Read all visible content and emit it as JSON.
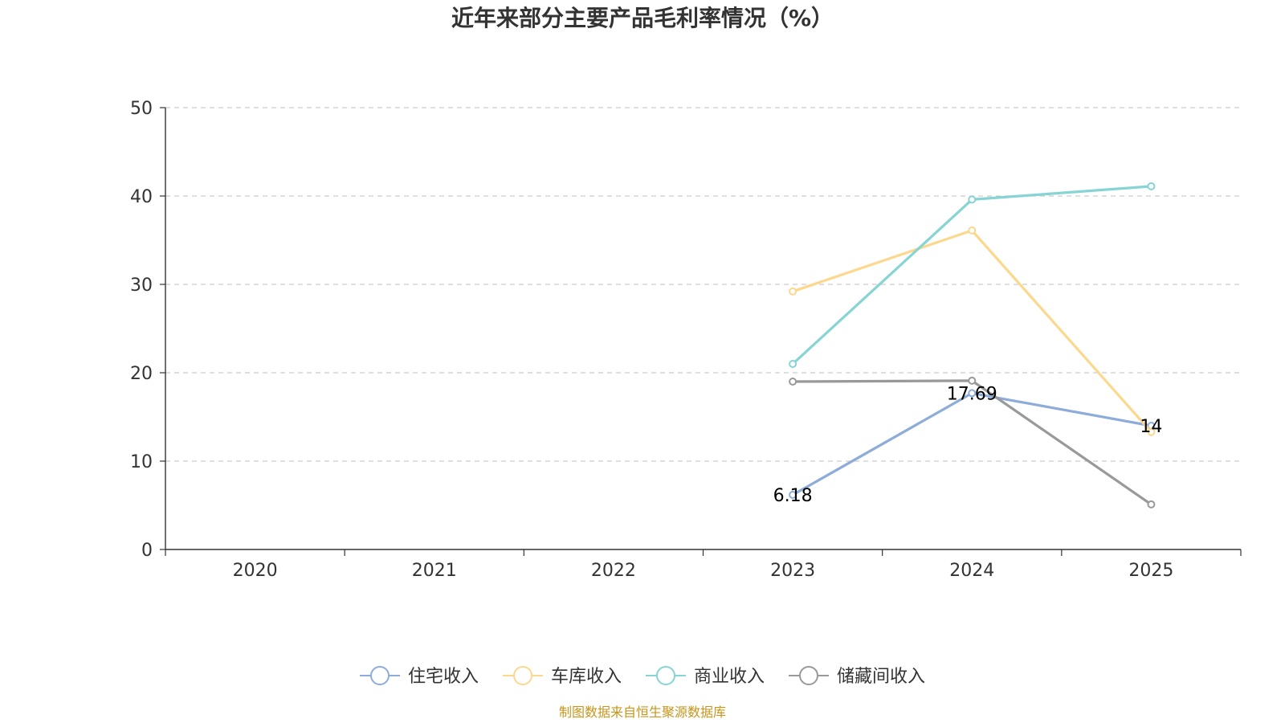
{
  "chart_data": {
    "type": "line",
    "title": "近年来部分主要产品毛利率情况（%）",
    "categories": [
      "2020",
      "2021",
      "2022",
      "2023",
      "2024",
      "2025"
    ],
    "ylim": [
      0,
      50
    ],
    "yticks": [
      0,
      10,
      20,
      30,
      40,
      50
    ],
    "grid": "horizontal-dashed",
    "legend_position": "bottom",
    "series": [
      {
        "name": "住宅收入",
        "color": "#8eacd9",
        "values": [
          null,
          null,
          null,
          6.18,
          17.69,
          14
        ],
        "labels": [
          null,
          null,
          null,
          "6.18",
          "17.69",
          "14"
        ]
      },
      {
        "name": "车库收入",
        "color": "#fcd88e",
        "values": [
          null,
          null,
          null,
          29.2,
          36.1,
          13.3
        ],
        "labels": [
          null,
          null,
          null,
          null,
          null,
          null
        ]
      },
      {
        "name": "商业收入",
        "color": "#86d4d4",
        "values": [
          null,
          null,
          null,
          21.0,
          39.6,
          41.1
        ],
        "labels": [
          null,
          null,
          null,
          null,
          null,
          null
        ]
      },
      {
        "name": "储藏间收入",
        "color": "#999999",
        "values": [
          null,
          null,
          null,
          19.0,
          19.1,
          5.1
        ],
        "labels": [
          null,
          null,
          null,
          null,
          null,
          null
        ]
      }
    ]
  },
  "source_text": "制图数据来自恒生聚源数据库"
}
